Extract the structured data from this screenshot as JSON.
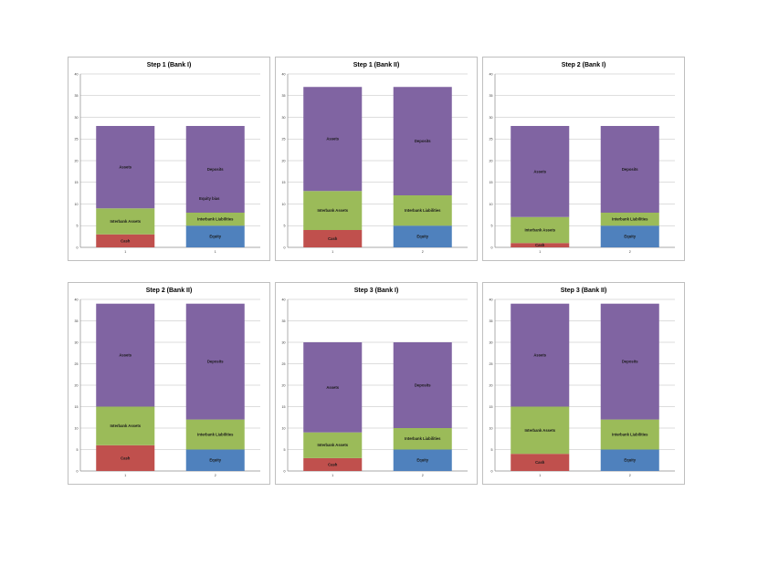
{
  "colors": {
    "Cash": "#c0504d",
    "Interbank Assets": "#9bbb59",
    "Assets": "#8064a2",
    "Equity": "#4f81bd",
    "Interbank Liabilities": "#9bbb59",
    "Deposits": "#8064a2"
  },
  "chart_data": [
    {
      "type": "bar",
      "stacked": true,
      "title": "Step 1 (Bank I)",
      "ylim": [
        0,
        40
      ],
      "yticks": [
        0,
        5,
        10,
        15,
        20,
        25,
        30,
        35,
        40
      ],
      "categories": [
        "1",
        "1"
      ],
      "bars": [
        {
          "segments": [
            {
              "name": "Cash",
              "label": "Cash",
              "value": 3
            },
            {
              "name": "Interbank Assets",
              "label": "Interbank Assets",
              "value": 6
            },
            {
              "name": "Assets",
              "label": "Assets",
              "value": 19
            }
          ]
        },
        {
          "segments": [
            {
              "name": "Equity",
              "label": "Equity",
              "value": 5
            },
            {
              "name": "Interbank Liabilities",
              "label": "Interbank Liabilities",
              "value": 3
            },
            {
              "name": "Deposits",
              "label": "Deposits",
              "value": 20
            }
          ]
        }
      ],
      "annotations": [
        "Equity bias"
      ]
    },
    {
      "type": "bar",
      "stacked": true,
      "title": "Step 1 (Bank II)",
      "ylim": [
        0,
        40
      ],
      "yticks": [
        0,
        5,
        10,
        15,
        20,
        25,
        30,
        35,
        40
      ],
      "categories": [
        "1",
        "2"
      ],
      "bars": [
        {
          "segments": [
            {
              "name": "Cash",
              "label": "Cash",
              "value": 4
            },
            {
              "name": "Interbank Assets",
              "label": "Interbank Assets",
              "value": 9
            },
            {
              "name": "Assets",
              "label": "Assets",
              "value": 24
            }
          ]
        },
        {
          "segments": [
            {
              "name": "Equity",
              "label": "Equity",
              "value": 5
            },
            {
              "name": "Interbank Liabilities",
              "label": "Interbank Liabilities",
              "value": 7
            },
            {
              "name": "Deposits",
              "label": "Deposits",
              "value": 25
            }
          ]
        }
      ],
      "annotations": []
    },
    {
      "type": "bar",
      "stacked": true,
      "title": "Step 2 (Bank I)",
      "ylim": [
        0,
        40
      ],
      "yticks": [
        0,
        5,
        10,
        15,
        20,
        25,
        30,
        35,
        40
      ],
      "categories": [
        "1",
        "2"
      ],
      "bars": [
        {
          "segments": [
            {
              "name": "Cash",
              "label": "Cash",
              "value": 1
            },
            {
              "name": "Interbank Assets",
              "label": "Interbank Assets",
              "value": 6
            },
            {
              "name": "Assets",
              "label": "Assets",
              "value": 21
            }
          ]
        },
        {
          "segments": [
            {
              "name": "Equity",
              "label": "Equity",
              "value": 5
            },
            {
              "name": "Interbank Liabilities",
              "label": "Interbank Liabilities",
              "value": 3
            },
            {
              "name": "Deposits",
              "label": "Deposits",
              "value": 20
            }
          ]
        }
      ],
      "annotations": []
    },
    {
      "type": "bar",
      "stacked": true,
      "title": "Step 2 (Bank II)",
      "ylim": [
        0,
        40
      ],
      "yticks": [
        0,
        5,
        10,
        15,
        20,
        25,
        30,
        35,
        40
      ],
      "categories": [
        "1",
        "2"
      ],
      "bars": [
        {
          "segments": [
            {
              "name": "Cash",
              "label": "Cash",
              "value": 6
            },
            {
              "name": "Interbank Assets",
              "label": "Interbank Assets",
              "value": 9
            },
            {
              "name": "Assets",
              "label": "Assets",
              "value": 24
            }
          ]
        },
        {
          "segments": [
            {
              "name": "Equity",
              "label": "Equity",
              "value": 5
            },
            {
              "name": "Interbank Liabilities",
              "label": "Interbank Liabilities",
              "value": 7
            },
            {
              "name": "Deposits",
              "label": "Deposits",
              "value": 27
            }
          ]
        }
      ],
      "annotations": []
    },
    {
      "type": "bar",
      "stacked": true,
      "title": "Step 3 (Bank I)",
      "ylim": [
        0,
        40
      ],
      "yticks": [
        0,
        5,
        10,
        15,
        20,
        25,
        30,
        35,
        40
      ],
      "categories": [
        "1",
        "2"
      ],
      "bars": [
        {
          "segments": [
            {
              "name": "Cash",
              "label": "Cash",
              "value": 3
            },
            {
              "name": "Interbank Assets",
              "label": "Interbank Assets",
              "value": 6
            },
            {
              "name": "Assets",
              "label": "Assets",
              "value": 21
            }
          ]
        },
        {
          "segments": [
            {
              "name": "Equity",
              "label": "Equity",
              "value": 5
            },
            {
              "name": "Interbank Liabilities",
              "label": "Interbank Liabilities",
              "value": 5
            },
            {
              "name": "Deposits",
              "label": "Deposits",
              "value": 20
            }
          ]
        }
      ],
      "annotations": []
    },
    {
      "type": "bar",
      "stacked": true,
      "title": "Step 3 (Bank II)",
      "ylim": [
        0,
        40
      ],
      "yticks": [
        0,
        5,
        10,
        15,
        20,
        25,
        30,
        35,
        40
      ],
      "categories": [
        "1",
        "2"
      ],
      "bars": [
        {
          "segments": [
            {
              "name": "Cash",
              "label": "Cash",
              "value": 4
            },
            {
              "name": "Interbank Assets",
              "label": "Interbank Assets",
              "value": 11
            },
            {
              "name": "Assets",
              "label": "Assets",
              "value": 24
            }
          ]
        },
        {
          "segments": [
            {
              "name": "Equity",
              "label": "Equity",
              "value": 5
            },
            {
              "name": "Interbank Liabilities",
              "label": "Interbank Liabilities",
              "value": 7
            },
            {
              "name": "Deposits",
              "label": "Deposits",
              "value": 27
            }
          ]
        }
      ],
      "annotations": []
    }
  ]
}
